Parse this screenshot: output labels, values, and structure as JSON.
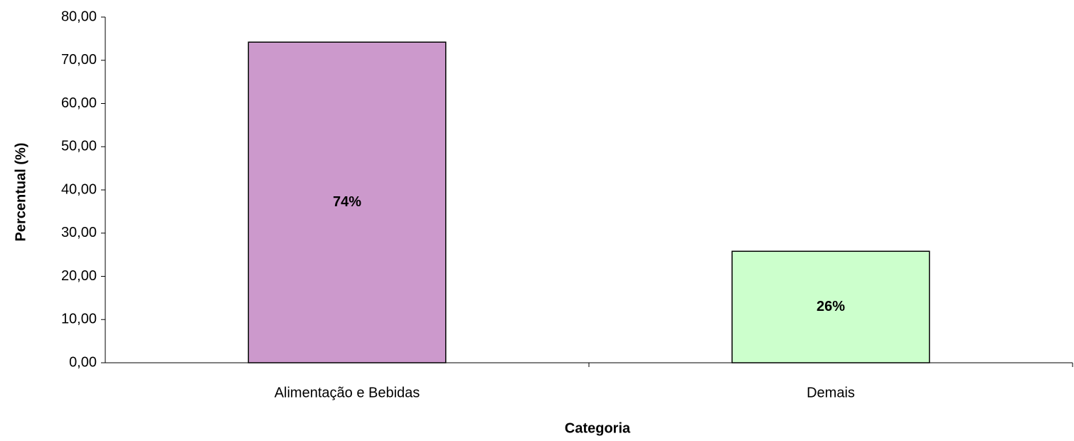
{
  "chart_data": {
    "type": "bar",
    "xlabel": "Categoria",
    "ylabel": "Percentual (%)",
    "categories": [
      "Alimentação e Bebidas",
      "Demais"
    ],
    "values": [
      74.2,
      25.8
    ],
    "value_labels": [
      "74%",
      "26%"
    ],
    "colors": [
      "#cc99cc",
      "#ccffcc"
    ],
    "ylim": [
      0,
      80
    ],
    "yticks": [
      {
        "value": 0,
        "label": "0,00"
      },
      {
        "value": 10,
        "label": "10,00"
      },
      {
        "value": 20,
        "label": "20,00"
      },
      {
        "value": 30,
        "label": "30,00"
      },
      {
        "value": 40,
        "label": "40,00"
      },
      {
        "value": 50,
        "label": "50,00"
      },
      {
        "value": 60,
        "label": "60,00"
      },
      {
        "value": 70,
        "label": "70,00"
      },
      {
        "value": 80,
        "label": "80,00"
      }
    ],
    "grid": false
  }
}
